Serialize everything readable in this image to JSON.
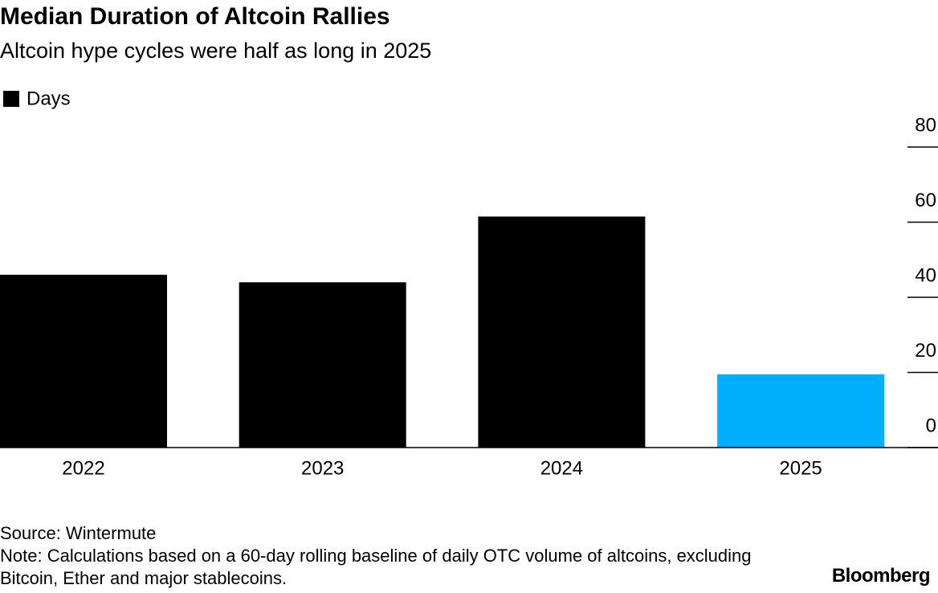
{
  "chart_data": {
    "type": "bar",
    "title": "Median Duration of Altcoin Rallies",
    "subtitle": "Altcoin hype cycles were half as long in 2025",
    "series": [
      {
        "name": "Days",
        "color": "#000000",
        "values": [
          46,
          44,
          61.5,
          19.5
        ]
      }
    ],
    "categories": [
      "2022",
      "2023",
      "2024",
      "2025"
    ],
    "bar_colors": [
      "#000000",
      "#000000",
      "#000000",
      "#00b0ff"
    ],
    "ylim": [
      0,
      80
    ],
    "yticks": [
      0,
      20,
      40,
      60,
      80
    ],
    "grid": false,
    "source": "Source: Wintermute",
    "note": "Note: Calculations based on a 60-day rolling baseline of daily OTC volume of altcoins, excluding Bitcoin, Ether and major stablecoins.",
    "logo": "Bloomberg"
  }
}
